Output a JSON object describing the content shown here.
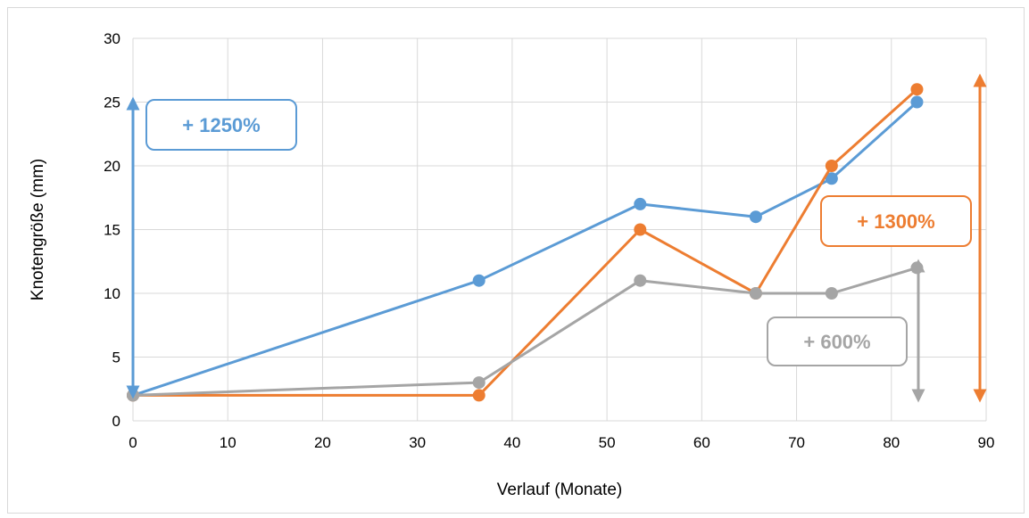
{
  "chart_data": {
    "type": "line",
    "xlabel": "Verlauf (Monate)",
    "ylabel": "Knotengröße (mm)",
    "xlim": [
      0,
      90
    ],
    "ylim": [
      0,
      30
    ],
    "x_ticks": [
      "0",
      "10",
      "20",
      "30",
      "40",
      "50",
      "60",
      "70",
      "80",
      "90"
    ],
    "y_ticks": [
      "0",
      "5",
      "10",
      "15",
      "20",
      "25",
      "30"
    ],
    "grid": true,
    "series": [
      {
        "color": "#5b9bd5",
        "x": [
          0,
          36.5,
          53.5,
          65.7,
          73.7,
          82.7
        ],
        "y": [
          2,
          11,
          17,
          16,
          19,
          25
        ]
      },
      {
        "color": "#ed7d31",
        "x": [
          0,
          36.5,
          53.5,
          65.7,
          73.7,
          82.7
        ],
        "y": [
          2,
          2,
          15,
          10,
          20,
          26
        ]
      },
      {
        "color": "#a5a5a5",
        "x": [
          0,
          36.5,
          53.5,
          65.7,
          73.7,
          82.7
        ],
        "y": [
          2,
          3,
          11,
          10,
          10,
          12
        ]
      }
    ],
    "annotations": [
      {
        "text": "+ 1250%",
        "color": "#5b9bd5"
      },
      {
        "text": "+ 1300%",
        "color": "#ed7d31"
      },
      {
        "text": "+ 600%",
        "color": "#a5a5a5"
      }
    ]
  }
}
